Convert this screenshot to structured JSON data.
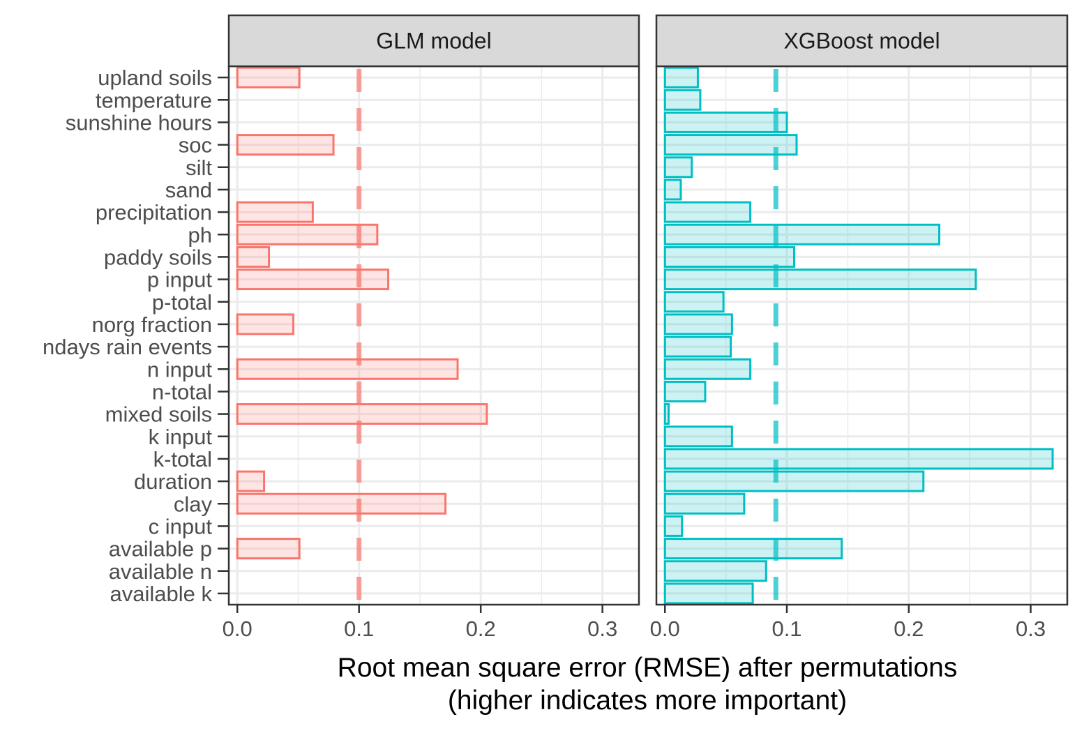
{
  "chart_data": {
    "type": "bar",
    "orientation": "horizontal",
    "xlabel_line1": "Root mean square error (RMSE) after permutations",
    "xlabel_line2": "(higher indicates more important)",
    "xlim": [
      -0.007,
      0.33
    ],
    "xticks": [
      0.0,
      0.1,
      0.2,
      0.3
    ],
    "xtick_labels": [
      "0.0",
      "0.1",
      "0.2",
      "0.3"
    ],
    "grid": true,
    "categories": [
      "upland soils",
      "temperature",
      "sunshine hours",
      "soc",
      "silt",
      "sand",
      "precipitation",
      "ph",
      "paddy soils",
      "p input",
      "p-total",
      "norg fraction",
      "ndays rain events",
      "n input",
      "n-total",
      "mixed soils",
      "k input",
      "k-total",
      "duration",
      "clay",
      "c input",
      "available p",
      "available n",
      "available k"
    ],
    "panels": [
      {
        "title": "GLM model",
        "color": "#F8766D",
        "reference_line": 0.1,
        "values": [
          0.051,
          0,
          0,
          0.079,
          0,
          0,
          0.062,
          0.115,
          0.026,
          0.124,
          0,
          0.046,
          0,
          0.181,
          0,
          0.205,
          0,
          0,
          0.022,
          0.171,
          0,
          0.051,
          0,
          0
        ]
      },
      {
        "title": "XGBoost model",
        "color": "#00BFC4",
        "reference_line": 0.091,
        "values": [
          0.027,
          0.029,
          0.1,
          0.108,
          0.022,
          0.013,
          0.07,
          0.225,
          0.106,
          0.255,
          0.048,
          0.055,
          0.054,
          0.07,
          0.033,
          0.003,
          0.055,
          0.318,
          0.212,
          0.065,
          0.014,
          0.145,
          0.083,
          0.072
        ]
      }
    ]
  }
}
